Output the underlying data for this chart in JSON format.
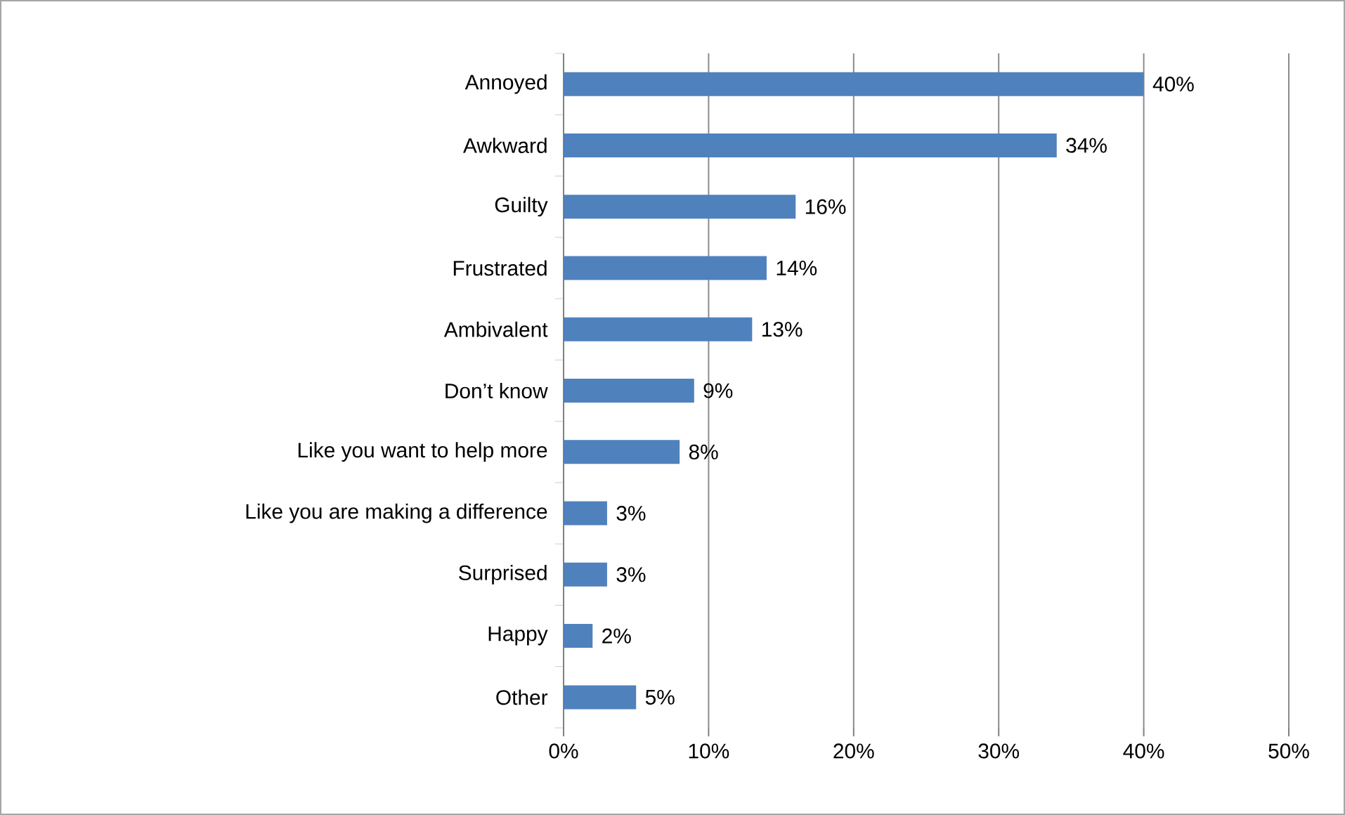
{
  "chart_data": {
    "type": "bar",
    "orientation": "horizontal",
    "categories": [
      "Annoyed",
      "Awkward",
      "Guilty",
      "Frustrated",
      "Ambivalent",
      "Don’t know",
      "Like you want to help more",
      "Like you are making a difference",
      "Surprised",
      "Happy",
      "Other"
    ],
    "values": [
      40,
      34,
      16,
      14,
      13,
      9,
      8,
      3,
      3,
      2,
      5
    ],
    "value_labels": [
      "40%",
      "34%",
      "16%",
      "14%",
      "13%",
      "9%",
      "8%",
      "3%",
      "3%",
      "2%",
      "5%"
    ],
    "color": "#4f81bd",
    "xlim": [
      0,
      50
    ],
    "xticks": [
      {
        "value": 0,
        "label": "0%"
      },
      {
        "value": 10,
        "label": "10%"
      },
      {
        "value": 20,
        "label": "20%"
      },
      {
        "value": 30,
        "label": "30%"
      },
      {
        "value": 40,
        "label": "40%"
      },
      {
        "value": 50,
        "label": "50%"
      }
    ],
    "grid": "x"
  }
}
